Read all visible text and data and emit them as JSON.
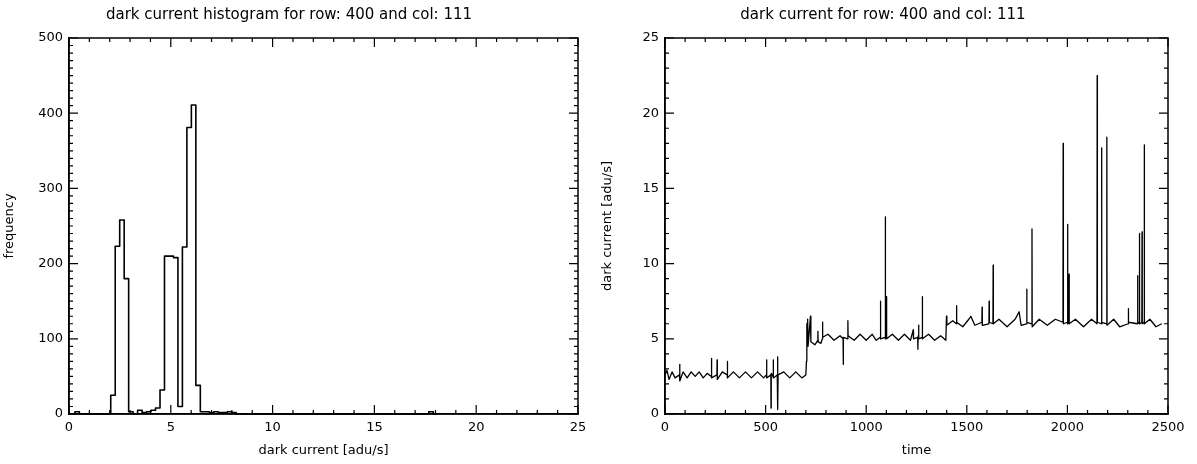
{
  "chart_data": [
    {
      "type": "histogram",
      "title": "dark current histogram for row: 400 and col: 111",
      "xlabel": "dark current [adu/s]",
      "ylabel": "frequency",
      "color": "#000000",
      "bins": [
        0.29,
        0.51,
        0.73,
        0.95,
        1.17,
        1.39,
        1.61,
        1.83,
        2.05,
        2.27,
        2.49,
        2.71,
        2.93,
        3.15,
        3.37,
        3.59,
        3.81,
        4.03,
        4.25,
        4.47,
        4.69,
        4.91,
        5.13,
        5.35,
        5.57,
        5.79,
        6.01,
        6.23,
        6.45,
        6.67,
        6.89,
        7.11,
        7.33,
        7.55,
        7.77,
        7.99,
        8.21,
        8.43,
        8.65,
        8.87,
        9.09,
        9.31,
        9.53,
        9.75,
        9.97,
        10.19,
        10.41,
        10.63,
        10.85,
        11.07,
        11.29,
        11.51,
        11.73,
        11.95,
        12.17,
        12.39,
        12.61,
        12.83,
        13.05,
        13.27,
        13.49,
        13.71,
        13.93,
        14.15,
        14.37,
        14.59,
        14.81,
        15.03,
        15.25,
        15.47,
        15.69,
        15.91,
        16.13,
        16.35,
        16.57,
        16.79,
        17.01,
        17.23,
        17.45,
        17.67,
        17.89,
        18.11
      ],
      "values": [
        3,
        0,
        0,
        0,
        0,
        0,
        0,
        0,
        25,
        223,
        258,
        180,
        3,
        0,
        5,
        2,
        3,
        5,
        8,
        32,
        210,
        210,
        208,
        10,
        222,
        381,
        411,
        38,
        3,
        3,
        2,
        3,
        2,
        2,
        3,
        2,
        0,
        0,
        0,
        0,
        0,
        0,
        0,
        0,
        0,
        0,
        0,
        0,
        0,
        0,
        0,
        0,
        0,
        0,
        0,
        0,
        0,
        0,
        0,
        0,
        0,
        0,
        0,
        0,
        0,
        0,
        0,
        0,
        0,
        0,
        0,
        0,
        0,
        0,
        0,
        0,
        0,
        0,
        0,
        3,
        0
      ],
      "xlim": [
        0,
        25
      ],
      "xticks": [
        0,
        {
          "value": 1,
          "label": null
        },
        {
          "value": 2,
          "label": null
        },
        {
          "value": 3,
          "label": null
        },
        {
          "value": 4,
          "label": null
        },
        5,
        {
          "value": 6,
          "label": null
        },
        {
          "value": 7,
          "label": null
        },
        {
          "value": 8,
          "label": null
        },
        {
          "value": 9,
          "label": null
        },
        10,
        {
          "value": 11,
          "label": null
        },
        {
          "value": 12,
          "label": null
        },
        {
          "value": 13,
          "label": null
        },
        {
          "value": 14,
          "label": null
        },
        15,
        {
          "value": 16,
          "label": null
        },
        {
          "value": 17,
          "label": null
        },
        {
          "value": 18,
          "label": null
        },
        {
          "value": 19,
          "label": null
        },
        20,
        {
          "value": 21,
          "label": null
        },
        {
          "value": 22,
          "label": null
        },
        {
          "value": 23,
          "label": null
        },
        {
          "value": 24,
          "label": null
        },
        25
      ],
      "ylim": [
        0,
        500
      ],
      "yticks": [
        0,
        {
          "value": 10,
          "label": null
        },
        {
          "value": 20,
          "label": null
        },
        {
          "value": 30,
          "label": null
        },
        {
          "value": 40,
          "label": null
        },
        {
          "value": 50,
          "label": null
        },
        {
          "value": 60,
          "label": null
        },
        {
          "value": 70,
          "label": null
        },
        {
          "value": 80,
          "label": null
        },
        {
          "value": 90,
          "label": null
        },
        100,
        {
          "value": 110,
          "label": null
        },
        {
          "value": 120,
          "label": null
        },
        {
          "value": 130,
          "label": null
        },
        {
          "value": 140,
          "label": null
        },
        {
          "value": 150,
          "label": null
        },
        {
          "value": 160,
          "label": null
        },
        {
          "value": 170,
          "label": null
        },
        {
          "value": 180,
          "label": null
        },
        {
          "value": 190,
          "label": null
        },
        200,
        {
          "value": 210,
          "label": null
        },
        {
          "value": 220,
          "label": null
        },
        {
          "value": 230,
          "label": null
        },
        {
          "value": 240,
          "label": null
        },
        {
          "value": 250,
          "label": null
        },
        {
          "value": 260,
          "label": null
        },
        {
          "value": 270,
          "label": null
        },
        {
          "value": 280,
          "label": null
        },
        {
          "value": 290,
          "label": null
        },
        300,
        {
          "value": 310,
          "label": null
        },
        {
          "value": 320,
          "label": null
        },
        {
          "value": 330,
          "label": null
        },
        {
          "value": 340,
          "label": null
        },
        {
          "value": 350,
          "label": null
        },
        {
          "value": 360,
          "label": null
        },
        {
          "value": 370,
          "label": null
        },
        {
          "value": 380,
          "label": null
        },
        {
          "value": 390,
          "label": null
        },
        400,
        {
          "value": 410,
          "label": null
        },
        {
          "value": 420,
          "label": null
        },
        {
          "value": 430,
          "label": null
        },
        {
          "value": 440,
          "label": null
        },
        {
          "value": 450,
          "label": null
        },
        {
          "value": 460,
          "label": null
        },
        {
          "value": 470,
          "label": null
        },
        {
          "value": 480,
          "label": null
        },
        {
          "value": 490,
          "label": null
        },
        500
      ]
    },
    {
      "type": "line",
      "title": "dark current for row: 400 and col: 111",
      "xlabel": "time",
      "ylabel": "dark current [adu/s]",
      "series": [
        {
          "color": "#000000",
          "x": [
            0,
            10,
            20,
            35,
            50,
            72,
            73,
            74,
            90,
            110,
            130,
            150,
            170,
            190,
            210,
            230,
            231,
            232,
            258,
            259,
            260,
            285,
            309,
            310,
            311,
            340,
            370,
            400,
            430,
            460,
            490,
            504,
            505,
            506,
            526,
            527,
            528,
            537,
            538,
            539,
            558,
            559,
            560,
            561,
            562,
            590,
            620,
            650,
            680,
            700,
            703,
            705,
            707,
            709,
            711,
            723,
            725,
            745,
            759,
            760,
            761,
            775,
            782,
            783,
            784,
            810,
            840,
            870,
            885,
            886,
            887,
            908,
            909,
            910,
            940,
            970,
            1000,
            1030,
            1050,
            1070,
            1071,
            1072,
            1094,
            1095,
            1096,
            1100,
            1101,
            1102,
            1130,
            1160,
            1190,
            1220,
            1234,
            1235,
            1256,
            1257,
            1258,
            1260,
            1262,
            1278,
            1279,
            1280,
            1310,
            1340,
            1370,
            1396,
            1399,
            1401,
            1430,
            1448,
            1449,
            1450,
            1480,
            1510,
            1520,
            1540,
            1575,
            1576,
            1577,
            1610,
            1611,
            1612,
            1630,
            1631,
            1632,
            1660,
            1700,
            1740,
            1760,
            1770,
            1797,
            1798,
            1799,
            1823,
            1824,
            1825,
            1860,
            1900,
            1940,
            1978,
            1979,
            1980,
            2000,
            2001,
            2002,
            2007,
            2008,
            2009,
            2040,
            2080,
            2120,
            2147,
            2148,
            2149,
            2169,
            2170,
            2171,
            2195,
            2196,
            2197,
            2230,
            2260,
            2302,
            2303,
            2304,
            2348,
            2349,
            2350,
            2357,
            2358,
            2359,
            2370,
            2371,
            2372,
            2381,
            2382,
            2383,
            2410,
            2440,
            2469
          ],
          "values": [
            2.6,
            2.9,
            2.3,
            2.8,
            2.4,
            2.6,
            3.3,
            2.2,
            2.8,
            2.4,
            2.8,
            2.5,
            2.8,
            2.4,
            2.7,
            2.5,
            3.7,
            2.4,
            2.6,
            3.6,
            2.3,
            2.8,
            2.6,
            3.5,
            2.4,
            2.8,
            2.4,
            2.8,
            2.4,
            2.8,
            2.4,
            2.6,
            3.6,
            2.4,
            2.6,
            0.4,
            2.7,
            2.5,
            3.6,
            2.4,
            2.6,
            3.8,
            2.5,
            0.3,
            2.6,
            2.8,
            2.4,
            2.8,
            2.4,
            2.6,
            3.5,
            6.0,
            4.6,
            6.3,
            4.5,
            6.5,
            4.8,
            4.6,
            4.9,
            5.5,
            4.8,
            4.7,
            5.0,
            6.1,
            5.1,
            5.3,
            4.9,
            5.2,
            5.0,
            3.3,
            5.1,
            5.0,
            6.2,
            5.2,
            4.9,
            5.3,
            4.9,
            5.3,
            4.9,
            5.1,
            7.5,
            5.0,
            5.1,
            13.1,
            5.0,
            5.2,
            7.8,
            5.0,
            5.3,
            4.9,
            5.3,
            4.9,
            5.6,
            5.0,
            5.1,
            4.3,
            5.2,
            5.9,
            5.0,
            5.1,
            7.8,
            5.0,
            5.3,
            4.9,
            5.2,
            4.9,
            6.5,
            5.9,
            6.2,
            6.0,
            7.2,
            6.1,
            5.8,
            6.3,
            6.5,
            5.9,
            6.1,
            7.1,
            5.9,
            6.0,
            7.5,
            6.1,
            6.0,
            9.9,
            6.0,
            6.3,
            5.8,
            6.3,
            6.8,
            5.9,
            6.0,
            8.3,
            6.1,
            6.0,
            12.3,
            5.8,
            6.3,
            5.9,
            6.3,
            6.1,
            18.0,
            6.0,
            6.1,
            12.6,
            6.0,
            6.1,
            9.3,
            6.0,
            6.3,
            5.8,
            6.3,
            6.0,
            22.5,
            6.1,
            6.0,
            17.7,
            6.1,
            6.0,
            18.4,
            5.9,
            6.3,
            5.8,
            6.0,
            7.0,
            6.1,
            6.0,
            9.2,
            6.0,
            6.1,
            12.0,
            6.0,
            6.1,
            12.1,
            6.0,
            6.1,
            17.9,
            6.0,
            6.3,
            5.8,
            6.0
          ]
        }
      ],
      "xlim": [
        0,
        2500
      ],
      "xticks": [
        0,
        {
          "value": 100,
          "label": null
        },
        {
          "value": 200,
          "label": null
        },
        {
          "value": 300,
          "label": null
        },
        {
          "value": 400,
          "label": null
        },
        500,
        {
          "value": 600,
          "label": null
        },
        {
          "value": 700,
          "label": null
        },
        {
          "value": 800,
          "label": null
        },
        {
          "value": 900,
          "label": null
        },
        1000,
        {
          "value": 1100,
          "label": null
        },
        {
          "value": 1200,
          "label": null
        },
        {
          "value": 1300,
          "label": null
        },
        {
          "value": 1400,
          "label": null
        },
        1500,
        {
          "value": 1600,
          "label": null
        },
        {
          "value": 1700,
          "label": null
        },
        {
          "value": 1800,
          "label": null
        },
        {
          "value": 1900,
          "label": null
        },
        2000,
        {
          "value": 2100,
          "label": null
        },
        {
          "value": 2200,
          "label": null
        },
        {
          "value": 2300,
          "label": null
        },
        {
          "value": 2400,
          "label": null
        },
        2500
      ],
      "ylim": [
        0,
        25
      ],
      "yticks": [
        0,
        {
          "value": 1,
          "label": null
        },
        {
          "value": 2,
          "label": null
        },
        {
          "value": 3,
          "label": null
        },
        {
          "value": 4,
          "label": null
        },
        5,
        {
          "value": 6,
          "label": null
        },
        {
          "value": 7,
          "label": null
        },
        {
          "value": 8,
          "label": null
        },
        {
          "value": 9,
          "label": null
        },
        10,
        {
          "value": 11,
          "label": null
        },
        {
          "value": 12,
          "label": null
        },
        {
          "value": 13,
          "label": null
        },
        {
          "value": 14,
          "label": null
        },
        15,
        {
          "value": 16,
          "label": null
        },
        {
          "value": 17,
          "label": null
        },
        {
          "value": 18,
          "label": null
        },
        {
          "value": 19,
          "label": null
        },
        20,
        {
          "value": 21,
          "label": null
        },
        {
          "value": 22,
          "label": null
        },
        {
          "value": 23,
          "label": null
        },
        {
          "value": 24,
          "label": null
        },
        25
      ]
    }
  ]
}
